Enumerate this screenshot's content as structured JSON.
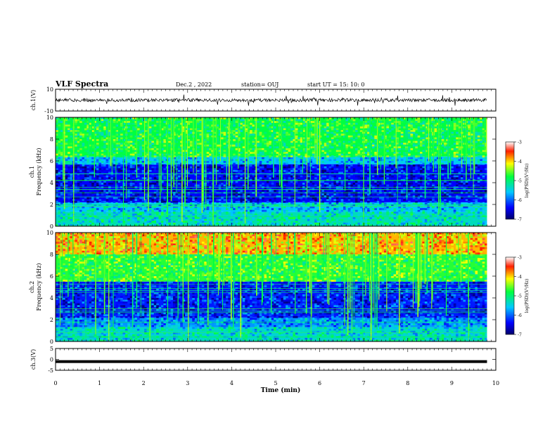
{
  "header": {
    "title": "VLF Spectra",
    "date": "Dec.2 , 2022",
    "station": "station= OUJ",
    "start": "start UT = 15: 10: 0"
  },
  "chart_data": [
    {
      "type": "line",
      "panel": "ch1_waveform",
      "ylabel": "ch.1(V)",
      "ylim": [
        -10,
        10
      ],
      "yticks": [
        "10",
        "-10"
      ],
      "x_range_min": [
        0,
        9.8
      ],
      "trace_level_v": 0,
      "trace_amplitude_v": 1.5
    },
    {
      "type": "heatmap",
      "panel": "ch1_spectrogram",
      "ylabel": "ch.1 Frequency (kHz)",
      "ylim": [
        0,
        10
      ],
      "yticks": [
        "0",
        "2",
        "4",
        "6",
        "8",
        "10"
      ],
      "colorbar": {
        "label": "log(PSD)(V²/Hz)",
        "range": [
          -7,
          -3
        ],
        "ticks": [
          "-3",
          "-4",
          "-5",
          "-6",
          "-7"
        ]
      },
      "regions_khz": [
        {
          "from": 0,
          "to": 1.3,
          "level": -5.3
        },
        {
          "from": 1.3,
          "to": 2.2,
          "level": -5.6
        },
        {
          "from": 2.2,
          "to": 5.7,
          "level": -6.4
        },
        {
          "from": 5.7,
          "to": 6.4,
          "level": -5.6
        },
        {
          "from": 6.4,
          "to": 10,
          "level": -4.8
        }
      ]
    },
    {
      "type": "heatmap",
      "panel": "ch2_spectrogram",
      "ylabel": "ch.2 Frequency (kHz)",
      "ylim": [
        0,
        10
      ],
      "yticks": [
        "0",
        "2",
        "4",
        "6",
        "8",
        "10"
      ],
      "colorbar": {
        "label": "log(PSD)(V²/Hz)",
        "range": [
          -7,
          -3
        ],
        "ticks": [
          "-3",
          "-4",
          "-5",
          "-6",
          "-7"
        ]
      },
      "regions_khz": [
        {
          "from": 0,
          "to": 1.3,
          "level": -5.4
        },
        {
          "from": 1.3,
          "to": 2.2,
          "level": -5.8
        },
        {
          "from": 2.2,
          "to": 5.5,
          "level": -6.3
        },
        {
          "from": 5.5,
          "to": 8,
          "level": -4.7
        },
        {
          "from": 8,
          "to": 10,
          "level": -3.9
        }
      ]
    },
    {
      "type": "line",
      "panel": "ch3_waveform",
      "ylabel": "ch.3(V)",
      "ylim": [
        -5,
        5
      ],
      "yticks": [
        "5",
        "0",
        "-5"
      ],
      "trace_level_v": -1
    }
  ],
  "x_axis": {
    "label": "Time (min)",
    "range": [
      0,
      10
    ],
    "ticks": [
      "0",
      "1",
      "2",
      "3",
      "4",
      "5",
      "6",
      "7",
      "8",
      "9",
      "10"
    ],
    "data_end_min": 9.8
  }
}
